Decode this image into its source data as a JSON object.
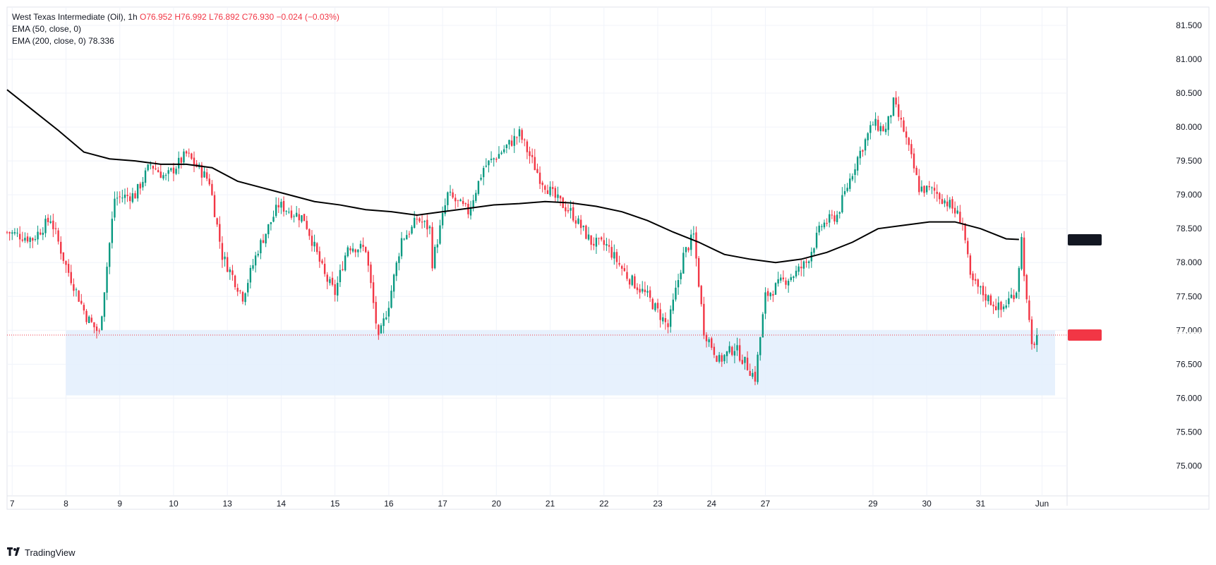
{
  "legend": {
    "symbol": "West Texas Intermediate (Oil), 1h",
    "ohlc": "O76.952 H76.992 L76.892 C76.930 −0.024 (−0.03%)",
    "ema50": "EMA (50, close, 0)",
    "ema200": "EMA (200, close, 0)",
    "ema200_value": "78.336"
  },
  "brand": "TradingView",
  "colors": {
    "up": "#089981",
    "down": "#f23645",
    "ema": "#000000",
    "zone": "#e3eefd",
    "grid": "#f0f3fa"
  },
  "chart_data": {
    "type": "candlestick",
    "title": "West Texas Intermediate (Oil), 1h",
    "ylim": [
      74.88,
      81.77
    ],
    "y_ticks": [
      "75.000",
      "75.500",
      "76.000",
      "76.500",
      "77.000",
      "77.500",
      "78.000",
      "78.500",
      "79.000",
      "79.500",
      "80.000",
      "80.500",
      "81.000",
      "81.500"
    ],
    "x_tick_labels": [
      "7",
      "8",
      "9",
      "10",
      "13",
      "14",
      "15",
      "16",
      "17",
      "20",
      "21",
      "22",
      "23",
      "24",
      "27",
      "29",
      "30",
      "31",
      "Jun"
    ],
    "x_tick_index": [
      2,
      23,
      44,
      65,
      86,
      107,
      128,
      149,
      170,
      191,
      212,
      233,
      254,
      275,
      296,
      338,
      359,
      380,
      404
    ],
    "last_price": 76.93,
    "last_price_label": "76.930",
    "ema200_label": "78.336",
    "support_zone": {
      "from": 76.04,
      "to": 77.0,
      "start_index": 23
    },
    "ema200_points": [
      [
        0,
        80.55
      ],
      [
        10,
        80.25
      ],
      [
        20,
        79.95
      ],
      [
        30,
        79.63
      ],
      [
        40,
        79.53
      ],
      [
        50,
        79.5
      ],
      [
        60,
        79.45
      ],
      [
        70,
        79.45
      ],
      [
        80,
        79.4
      ],
      [
        90,
        79.2
      ],
      [
        100,
        79.1
      ],
      [
        110,
        79.0
      ],
      [
        120,
        78.9
      ],
      [
        130,
        78.85
      ],
      [
        140,
        78.78
      ],
      [
        150,
        78.75
      ],
      [
        160,
        78.7
      ],
      [
        170,
        78.75
      ],
      [
        180,
        78.8
      ],
      [
        190,
        78.85
      ],
      [
        200,
        78.87
      ],
      [
        210,
        78.9
      ],
      [
        220,
        78.88
      ],
      [
        230,
        78.83
      ],
      [
        240,
        78.75
      ],
      [
        250,
        78.62
      ],
      [
        260,
        78.45
      ],
      [
        270,
        78.3
      ],
      [
        280,
        78.12
      ],
      [
        290,
        78.05
      ],
      [
        300,
        78.0
      ],
      [
        310,
        78.05
      ],
      [
        320,
        78.15
      ],
      [
        330,
        78.3
      ],
      [
        340,
        78.5
      ],
      [
        350,
        78.55
      ],
      [
        360,
        78.6
      ],
      [
        370,
        78.6
      ],
      [
        380,
        78.5
      ],
      [
        390,
        78.35
      ],
      [
        395,
        78.34
      ]
    ],
    "close_path": [
      [
        0,
        78.45
      ],
      [
        10,
        78.35
      ],
      [
        17,
        78.65
      ],
      [
        23,
        77.95
      ],
      [
        31,
        77.2
      ],
      [
        36,
        76.95
      ],
      [
        42,
        78.95
      ],
      [
        50,
        79.0
      ],
      [
        56,
        79.45
      ],
      [
        62,
        79.25
      ],
      [
        70,
        79.6
      ],
      [
        79,
        79.2
      ],
      [
        84,
        78.1
      ],
      [
        92,
        77.5
      ],
      [
        98,
        78.2
      ],
      [
        106,
        78.85
      ],
      [
        111,
        78.75
      ],
      [
        116,
        78.65
      ],
      [
        124,
        77.8
      ],
      [
        128,
        77.55
      ],
      [
        133,
        78.25
      ],
      [
        140,
        78.2
      ],
      [
        145,
        76.85
      ],
      [
        149,
        77.4
      ],
      [
        154,
        78.35
      ],
      [
        158,
        78.5
      ],
      [
        160,
        78.65
      ],
      [
        165,
        78.5
      ],
      [
        166,
        78.0
      ],
      [
        172,
        79.0
      ],
      [
        180,
        78.75
      ],
      [
        186,
        79.4
      ],
      [
        192,
        79.6
      ],
      [
        200,
        79.9
      ],
      [
        208,
        79.25
      ],
      [
        214,
        78.95
      ],
      [
        220,
        78.75
      ],
      [
        228,
        78.3
      ],
      [
        234,
        78.25
      ],
      [
        242,
        77.8
      ],
      [
        250,
        77.5
      ],
      [
        258,
        77.05
      ],
      [
        264,
        78.1
      ],
      [
        268,
        78.4
      ],
      [
        272,
        77.0
      ],
      [
        278,
        76.55
      ],
      [
        284,
        76.75
      ],
      [
        292,
        76.3
      ],
      [
        296,
        77.5
      ],
      [
        302,
        77.7
      ],
      [
        308,
        77.85
      ],
      [
        312,
        78.0
      ],
      [
        318,
        78.55
      ],
      [
        324,
        78.7
      ],
      [
        332,
        79.55
      ],
      [
        338,
        80.05
      ],
      [
        343,
        79.95
      ],
      [
        346,
        80.35
      ],
      [
        350,
        79.95
      ],
      [
        356,
        79.1
      ],
      [
        362,
        79.05
      ],
      [
        368,
        78.85
      ],
      [
        373,
        78.6
      ],
      [
        376,
        77.75
      ],
      [
        382,
        77.5
      ],
      [
        388,
        77.3
      ],
      [
        392,
        77.5
      ],
      [
        394,
        77.6
      ],
      [
        396,
        78.35
      ],
      [
        398,
        77.4
      ],
      [
        400,
        76.75
      ],
      [
        402,
        76.93
      ]
    ]
  }
}
